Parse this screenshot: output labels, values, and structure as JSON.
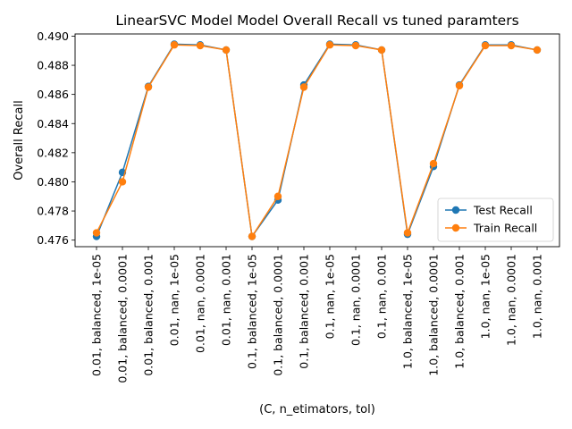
{
  "chart_data": {
    "type": "line",
    "title": "LinearSVC Model Model Overall Recall vs tuned paramters",
    "xlabel": "(C, n_etimators, tol)",
    "ylabel": "Overall Recall",
    "categories": [
      "0.01, balanced, 1e-05",
      "0.01, balanced, 0.0001",
      "0.01, balanced, 0.001",
      "0.01, nan, 1e-05",
      "0.01, nan, 0.0001",
      "0.01, nan, 0.001",
      "0.1, balanced, 1e-05",
      "0.1, balanced, 0.0001",
      "0.1, balanced, 0.001",
      "0.1, nan, 1e-05",
      "0.1, nan, 0.0001",
      "0.1, nan, 0.001",
      "1.0, balanced, 1e-05",
      "1.0, balanced, 0.0001",
      "1.0, balanced, 0.001",
      "1.0, nan, 1e-05",
      "1.0, nan, 0.0001",
      "1.0, nan, 0.001"
    ],
    "series": [
      {
        "name": "Test Recall",
        "color": "#1f77b4",
        "values": [
          0.47625,
          0.48065,
          0.48655,
          0.48945,
          0.4894,
          0.48905,
          0.47625,
          0.47875,
          0.48665,
          0.48945,
          0.4894,
          0.48905,
          0.4764,
          0.48105,
          0.48665,
          0.4894,
          0.4894,
          0.48905
        ]
      },
      {
        "name": "Train Recall",
        "color": "#ff7f0e",
        "values": [
          0.4765,
          0.48,
          0.4865,
          0.4894,
          0.48935,
          0.48905,
          0.47625,
          0.479,
          0.4865,
          0.4894,
          0.48935,
          0.48905,
          0.4765,
          0.48125,
          0.4866,
          0.48935,
          0.48935,
          0.48905
        ]
      }
    ],
    "ylim": [
      0.47555,
      0.49015
    ],
    "yticks": [
      0.476,
      0.478,
      0.48,
      0.482,
      0.484,
      0.486,
      0.488,
      0.49
    ],
    "ytick_labels": [
      "0.476",
      "0.478",
      "0.480",
      "0.482",
      "0.484",
      "0.486",
      "0.488",
      "0.490"
    ],
    "grid": false,
    "legend_position": "lower-right"
  }
}
